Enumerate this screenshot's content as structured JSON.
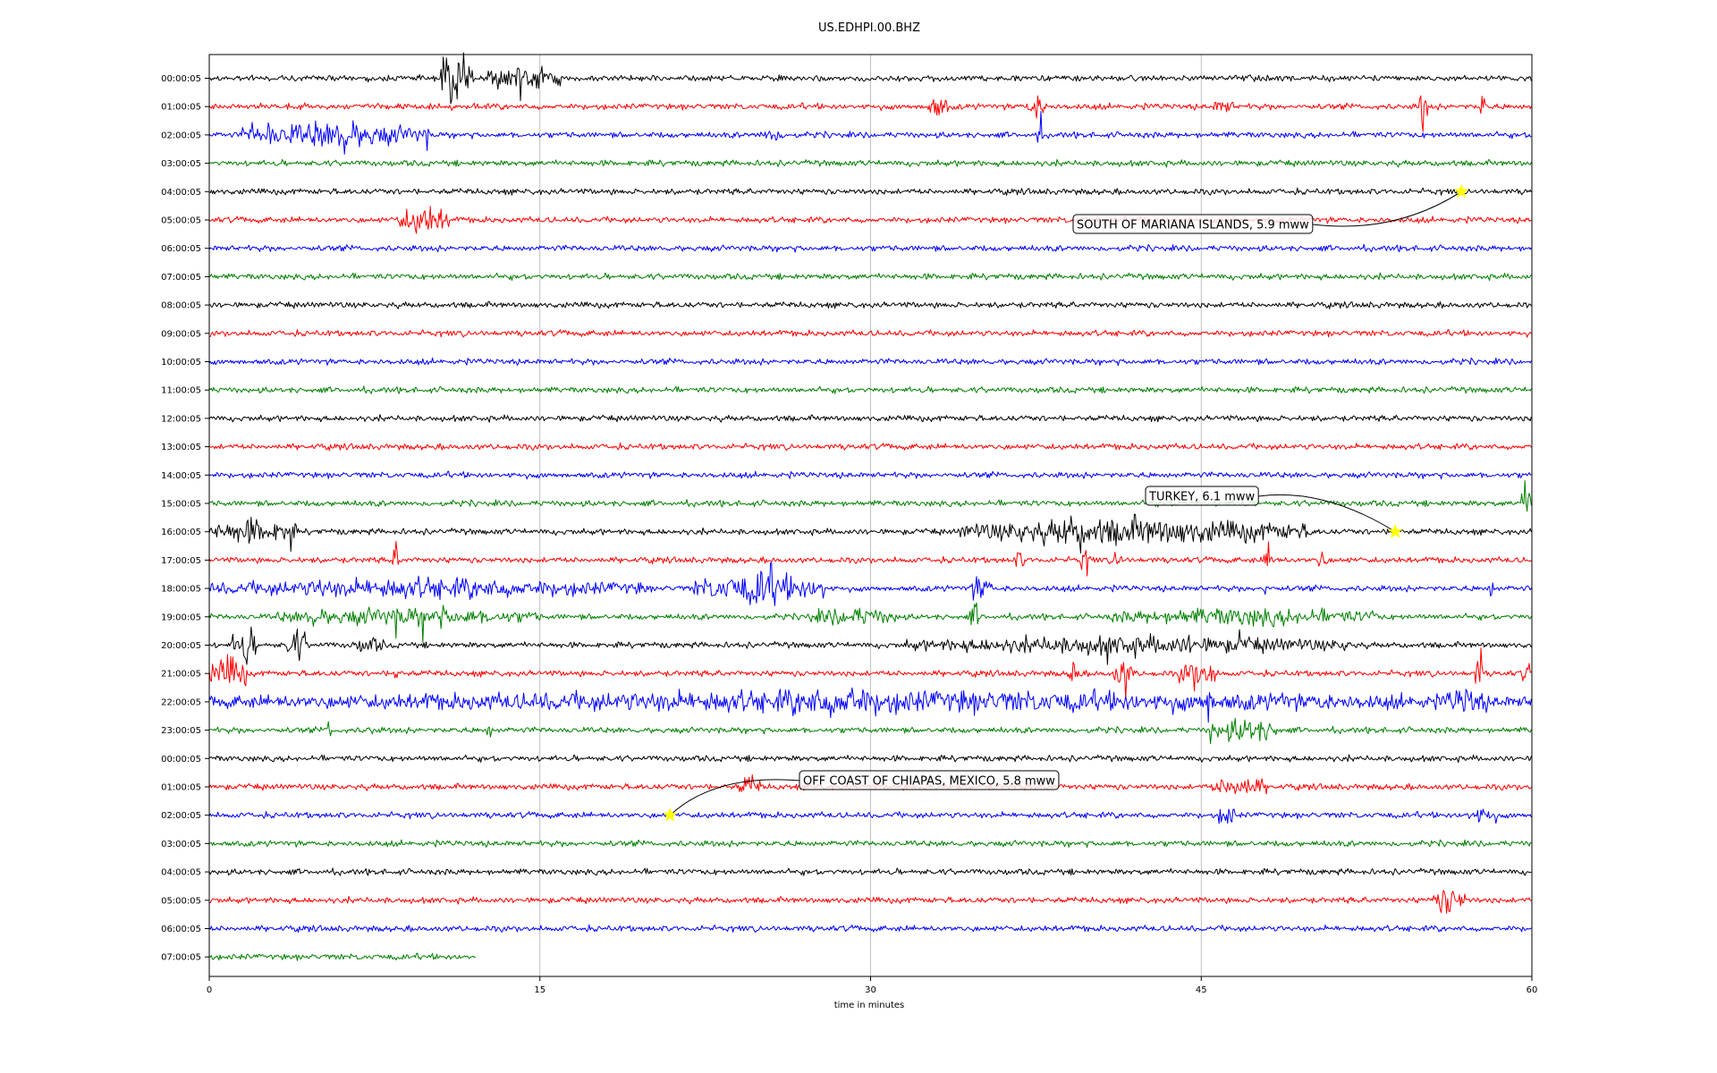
{
  "chart_data": {
    "type": "line",
    "title": "US.EDHPI.00.BHZ",
    "xlabel": "time in minutes",
    "ylabel": "",
    "xlim": [
      0,
      60
    ],
    "x_ticks": [
      0,
      15,
      30,
      45,
      60
    ],
    "grid": "vertical lines at x ticks",
    "trace_colors": [
      "#000000",
      "#ff0000",
      "#0000ff",
      "#008000"
    ],
    "rows": [
      {
        "label": "00:00:05",
        "end_minute": 60,
        "events": [
          [
            10.5,
            12,
            3.5
          ],
          [
            12.5,
            16,
            1.4
          ]
        ]
      },
      {
        "label": "01:00:05",
        "end_minute": 60,
        "events": [
          [
            32.5,
            33.5,
            1.5
          ],
          [
            37,
            38,
            1.5
          ],
          [
            45.5,
            46.5,
            1.0
          ],
          [
            54.8,
            55.3,
            2.0
          ],
          [
            57.6,
            57.9,
            2.0
          ]
        ]
      },
      {
        "label": "02:00:05",
        "end_minute": 60,
        "events": [
          [
            1.5,
            10,
            1.5
          ],
          [
            4.8,
            5.0,
            3.0
          ],
          [
            2.6,
            2.8,
            3.0
          ],
          [
            37.5,
            37.8,
            2.5
          ],
          [
            25,
            26,
            1.0
          ]
        ]
      },
      {
        "label": "03:00:05",
        "end_minute": 60,
        "events": []
      },
      {
        "label": "04:00:05",
        "end_minute": 60,
        "events": []
      },
      {
        "label": "05:00:05",
        "end_minute": 60,
        "events": [
          [
            8.5,
            11,
            1.8
          ]
        ]
      },
      {
        "label": "06:00:05",
        "end_minute": 60,
        "events": []
      },
      {
        "label": "07:00:05",
        "end_minute": 60,
        "events": []
      },
      {
        "label": "08:00:05",
        "end_minute": 60,
        "events": []
      },
      {
        "label": "09:00:05",
        "end_minute": 60,
        "events": []
      },
      {
        "label": "10:00:05",
        "end_minute": 60,
        "events": []
      },
      {
        "label": "11:00:05",
        "end_minute": 60,
        "events": []
      },
      {
        "label": "12:00:05",
        "end_minute": 60,
        "events": []
      },
      {
        "label": "13:00:05",
        "end_minute": 60,
        "events": []
      },
      {
        "label": "14:00:05",
        "end_minute": 60,
        "events": []
      },
      {
        "label": "15:00:05",
        "end_minute": 60,
        "events": [
          [
            59.5,
            60,
            2.5
          ]
        ]
      },
      {
        "label": "16:00:05",
        "end_minute": 60,
        "events": [
          [
            0,
            4,
            1.5
          ],
          [
            3.4,
            3.7,
            2.5
          ],
          [
            34,
            50,
            1.6
          ],
          [
            38,
            40,
            2.0
          ]
        ]
      },
      {
        "label": "17:00:05",
        "end_minute": 60,
        "events": [
          [
            8.3,
            8.6,
            2.0
          ],
          [
            39.5,
            40,
            1.6
          ],
          [
            41,
            41.4,
            1.4
          ],
          [
            47.8,
            48.3,
            1.8
          ],
          [
            50.3,
            50.7,
            1.8
          ],
          [
            36.5,
            37,
            1.2
          ]
        ]
      },
      {
        "label": "18:00:05",
        "end_minute": 60,
        "events": [
          [
            0,
            20,
            1.2
          ],
          [
            22,
            28,
            1.8
          ],
          [
            24.5,
            26,
            3.0
          ],
          [
            27.7,
            28,
            2.0
          ],
          [
            34.5,
            35.5,
            1.6
          ],
          [
            47.8,
            48,
            1.6
          ],
          [
            58,
            58.3,
            1.4
          ],
          [
            4.9,
            5.2,
            2.0
          ]
        ]
      },
      {
        "label": "19:00:05",
        "end_minute": 60,
        "events": [
          [
            3,
            15,
            1.1
          ],
          [
            27,
            31.5,
            1.1
          ],
          [
            34.5,
            35,
            1.6
          ],
          [
            40.8,
            53,
            1.1
          ],
          [
            29.2,
            29.5,
            1.4
          ]
        ]
      },
      {
        "label": "20:00:05",
        "end_minute": 60,
        "events": [
          [
            1,
            2.2,
            2.0
          ],
          [
            3.5,
            4.5,
            2.0
          ],
          [
            6.5,
            8,
            1.0
          ],
          [
            31.5,
            52,
            1.1
          ]
        ]
      },
      {
        "label": "21:00:05",
        "end_minute": 60,
        "events": [
          [
            0,
            1.8,
            2.0
          ],
          [
            8.3,
            8.6,
            1.5
          ],
          [
            39,
            39.5,
            2.0
          ],
          [
            41,
            42,
            1.8
          ],
          [
            44,
            45.5,
            1.8
          ],
          [
            45.4,
            45.7,
            3.0
          ],
          [
            57.4,
            57.8,
            2.5
          ],
          [
            59.5,
            60,
            1.2
          ]
        ]
      },
      {
        "label": "22:00:05",
        "end_minute": 60,
        "events": [
          [
            0,
            60,
            1.3
          ],
          [
            24,
            33,
            1.8
          ],
          [
            29,
            29.3,
            3.0
          ],
          [
            45.2,
            45.5,
            3.5
          ],
          [
            50.3,
            50.6,
            2.0
          ],
          [
            56,
            58,
            1.8
          ]
        ]
      },
      {
        "label": "23:00:05",
        "end_minute": 60,
        "events": [
          [
            5.3,
            5.6,
            1.6
          ],
          [
            7.2,
            7.4,
            1.4
          ],
          [
            12.6,
            12.8,
            1.6
          ],
          [
            45.6,
            48.6,
            1.6
          ],
          [
            45.3,
            45.6,
            2.0
          ]
        ]
      },
      {
        "label": "00:00:05",
        "end_minute": 60,
        "events": []
      },
      {
        "label": "01:00:05",
        "end_minute": 60,
        "events": [
          [
            24,
            25,
            1.4
          ],
          [
            45.5,
            48,
            1.4
          ]
        ]
      },
      {
        "label": "02:00:05",
        "end_minute": 60,
        "events": [
          [
            45.8,
            46.5,
            1.6
          ],
          [
            57,
            58.5,
            1.1
          ]
        ]
      },
      {
        "label": "03:00:05",
        "end_minute": 60,
        "events": []
      },
      {
        "label": "04:00:05",
        "end_minute": 60,
        "events": []
      },
      {
        "label": "05:00:05",
        "end_minute": 60,
        "events": [
          [
            55.5,
            57,
            1.8
          ]
        ]
      },
      {
        "label": "06:00:05",
        "end_minute": 60,
        "events": []
      },
      {
        "label": "07:00:05",
        "end_minute": 12.1,
        "events": []
      }
    ],
    "annotations": [
      {
        "text": "SOUTH OF MARIANA ISLANDS, 5.9 mww",
        "row": 4,
        "minute": 56.8,
        "marker": "star",
        "marker_color": "#ffff00"
      },
      {
        "text": "TURKEY, 6.1 mww",
        "row": 16,
        "minute": 53.8,
        "marker": "star",
        "marker_color": "#ffff00"
      },
      {
        "text": "OFF COAST OF CHIAPAS, MEXICO, 5.8 mww",
        "row": 26,
        "minute": 20.9,
        "marker": "star",
        "marker_color": "#ffff00"
      }
    ]
  }
}
